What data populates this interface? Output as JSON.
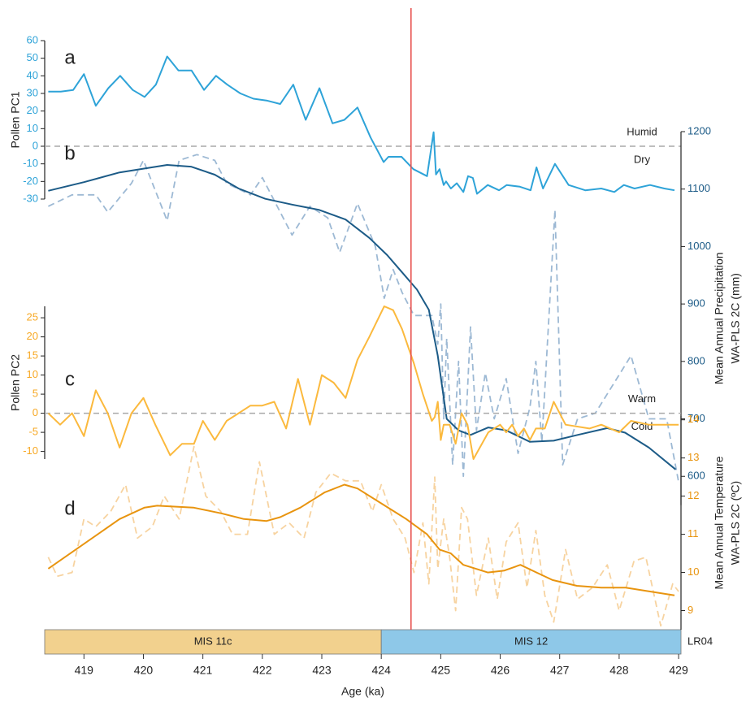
{
  "chart_data": [
    {
      "type": "line",
      "panel_label": "a",
      "ylabel": [
        "Pollen PC1"
      ],
      "axis_side": "left",
      "axis_color": "#2ea3d8",
      "xlim": [
        418.34,
        429.04
      ],
      "ylim": [
        -30,
        60
      ],
      "yticks": [
        -30,
        -20,
        -10,
        0,
        10,
        20,
        30,
        40,
        50,
        60
      ],
      "reference_line": {
        "value": 0,
        "labels": [
          "Humid",
          "Dry"
        ]
      },
      "series": [
        {
          "color": "#2ea3d8",
          "dashed": false,
          "x": [
            418.4,
            418.61,
            418.82,
            419.0,
            419.2,
            419.41,
            419.61,
            419.82,
            420.02,
            420.21,
            420.4,
            420.59,
            420.81,
            421.02,
            421.22,
            421.41,
            421.63,
            421.85,
            422.07,
            422.3,
            422.52,
            422.73,
            422.96,
            423.18,
            423.38,
            423.6,
            423.82,
            424.04,
            424.12,
            424.34,
            424.54,
            424.77,
            424.88,
            424.92,
            424.98,
            425.05,
            425.09,
            425.17,
            425.27,
            425.38,
            425.46,
            425.54,
            425.61,
            425.79,
            425.98,
            426.11,
            426.33,
            426.51,
            426.61,
            426.72,
            426.92,
            427.15,
            427.43,
            427.7,
            427.92,
            428.08,
            428.26,
            428.52,
            428.76,
            428.93
          ],
          "values": [
            31,
            31,
            32,
            41,
            23,
            33,
            40,
            32,
            28,
            35,
            51,
            43,
            43,
            32,
            40,
            35,
            30,
            27,
            26,
            24,
            35,
            15,
            33,
            13,
            15,
            22,
            5,
            -9,
            -6,
            -6,
            -13,
            -17,
            8,
            -16,
            -13,
            -22,
            -20,
            -24,
            -21,
            -26,
            -17,
            -18,
            -27,
            -22,
            -25,
            -22,
            -23,
            -25,
            -12,
            -24,
            -10,
            -22,
            -25,
            -24,
            -26,
            -22,
            -24,
            -22,
            -24,
            -25
          ]
        }
      ]
    },
    {
      "type": "line",
      "panel_label": "b",
      "ylabel": [
        "Mean Annual Precipitation",
        "WA-PLS 2C (mm)"
      ],
      "axis_side": "right",
      "axis_color": "#1c5b87",
      "xlim": [
        418.34,
        429.04
      ],
      "ylim": [
        550,
        1200
      ],
      "yticks": [
        600,
        700,
        800,
        900,
        1000,
        1100,
        1200
      ],
      "series": [
        {
          "color": "#9db9d4",
          "dashed": true,
          "x": [
            418.4,
            418.8,
            419.2,
            419.4,
            419.8,
            420.0,
            420.4,
            420.6,
            420.9,
            421.2,
            421.4,
            421.8,
            422.0,
            422.3,
            422.5,
            422.8,
            423.1,
            423.3,
            423.6,
            423.9,
            424.05,
            424.2,
            424.35,
            424.55,
            424.85,
            424.95,
            425.0,
            425.05,
            425.1,
            425.2,
            425.3,
            425.38,
            425.5,
            425.6,
            425.75,
            425.9,
            426.1,
            426.3,
            426.5,
            426.6,
            426.7,
            426.92,
            427.05,
            427.3,
            427.6,
            427.9,
            428.2,
            428.5,
            428.8,
            429.0
          ],
          "values": [
            1070,
            1090,
            1090,
            1060,
            1110,
            1150,
            1045,
            1150,
            1160,
            1150,
            1110,
            1090,
            1120,
            1060,
            1020,
            1070,
            1050,
            990,
            1075,
            1000,
            910,
            960,
            920,
            880,
            880,
            830,
            900,
            700,
            840,
            620,
            800,
            600,
            860,
            680,
            780,
            700,
            770,
            640,
            720,
            800,
            660,
            1064,
            620,
            700,
            710,
            760,
            810,
            700,
            700,
            590
          ]
        },
        {
          "color": "#1c5b87",
          "dashed": false,
          "x": [
            418.4,
            419.0,
            419.6,
            420.4,
            420.8,
            421.2,
            421.6,
            422.05,
            422.5,
            422.95,
            423.4,
            423.8,
            424.1,
            424.35,
            424.6,
            424.8,
            424.95,
            425.1,
            425.3,
            425.5,
            425.8,
            426.1,
            426.5,
            426.9,
            427.3,
            427.8,
            428.1,
            428.5,
            428.95
          ],
          "values": [
            1097,
            1112,
            1129,
            1142,
            1139,
            1125,
            1101,
            1083,
            1073,
            1064,
            1047,
            1015,
            985,
            955,
            925,
            890,
            810,
            700,
            680,
            672,
            685,
            680,
            660,
            662,
            672,
            684,
            676,
            650,
            612
          ]
        }
      ]
    },
    {
      "type": "line",
      "panel_label": "c",
      "ylabel": [
        "Pollen PC2"
      ],
      "axis_side": "left",
      "axis_color": "#f7a823",
      "xlim": [
        418.34,
        429.04
      ],
      "ylim": [
        -12,
        28
      ],
      "yticks": [
        -10,
        -5,
        0,
        5,
        10,
        15,
        20,
        25
      ],
      "reference_line": {
        "value": 0,
        "labels": [
          "Warm",
          "Cold"
        ]
      },
      "series": [
        {
          "color": "#fbb93d",
          "dashed": false,
          "x": [
            418.4,
            418.6,
            418.8,
            419.0,
            419.2,
            419.4,
            419.6,
            419.8,
            420.0,
            420.2,
            420.45,
            420.65,
            420.85,
            421.0,
            421.2,
            421.4,
            421.6,
            421.8,
            422.0,
            422.2,
            422.4,
            422.6,
            422.8,
            423.0,
            423.2,
            423.4,
            423.6,
            423.8,
            424.05,
            424.2,
            424.35,
            424.55,
            424.7,
            424.85,
            424.9,
            424.95,
            425.0,
            425.05,
            425.15,
            425.25,
            425.35,
            425.45,
            425.55,
            425.8,
            426.0,
            426.1,
            426.2,
            426.3,
            426.4,
            426.5,
            426.6,
            426.75,
            426.9,
            427.1,
            427.5,
            427.7,
            428.0,
            428.2,
            428.5,
            429.0
          ],
          "values": [
            0,
            -3,
            0,
            -6,
            6,
            0,
            -9,
            0,
            4,
            -3,
            -11,
            -8,
            -8,
            -2,
            -7,
            -2,
            0,
            2,
            2,
            3,
            -4,
            9,
            -3,
            10,
            8,
            4,
            14,
            20,
            28,
            27,
            22,
            13,
            5,
            -2,
            -1,
            3,
            -7,
            -3,
            -3,
            -8,
            0,
            -3,
            -12,
            -5,
            -3,
            -5,
            -3,
            -6,
            -4,
            -7,
            -4,
            -4,
            3,
            -3,
            -4,
            -3,
            -5,
            -2,
            -3,
            -3
          ]
        }
      ]
    },
    {
      "type": "line",
      "panel_label": "d",
      "ylabel": [
        "Mean Annual Temperature",
        "WA-PLS 2C (ºC)"
      ],
      "axis_side": "right",
      "axis_color": "#e8940f",
      "xlim": [
        418.34,
        429.04
      ],
      "ylim": [
        8.5,
        14.1
      ],
      "yticks": [
        9,
        10,
        11,
        12,
        13,
        14
      ],
      "xlabel": "Age (ka)",
      "xticks": [
        419,
        420,
        421,
        422,
        423,
        424,
        425,
        426,
        427,
        428,
        429
      ],
      "stages": [
        {
          "label": "MIS 11c",
          "start": 418.34,
          "end": 424,
          "color": "#f2d18e"
        },
        {
          "label": "MIS 12",
          "start": 424,
          "end": 429.04,
          "color": "#8ec8e8"
        }
      ],
      "stage_source": "LR04",
      "marker": {
        "x": 424.5,
        "color": "#e8524f"
      },
      "series": [
        {
          "color": "#f7d3a0",
          "dashed": true,
          "x": [
            418.4,
            418.55,
            418.8,
            419.0,
            419.2,
            419.45,
            419.7,
            419.9,
            420.15,
            420.35,
            420.6,
            420.85,
            421.05,
            421.3,
            421.5,
            421.75,
            421.95,
            422.2,
            422.45,
            422.7,
            422.9,
            423.15,
            423.4,
            423.65,
            423.85,
            424.0,
            424.2,
            424.4,
            424.55,
            424.7,
            424.8,
            424.9,
            424.95,
            425.05,
            425.15,
            425.25,
            425.35,
            425.45,
            425.6,
            425.8,
            425.95,
            426.1,
            426.3,
            426.45,
            426.6,
            426.75,
            426.9,
            427.1,
            427.3,
            427.55,
            427.8,
            428.0,
            428.25,
            428.45,
            428.7,
            428.9,
            429.0
          ],
          "values": [
            10.4,
            9.9,
            10.0,
            11.4,
            11.2,
            11.6,
            12.3,
            10.9,
            11.2,
            12.0,
            11.4,
            13.3,
            12.0,
            11.6,
            11.0,
            11.0,
            12.9,
            11.0,
            11.3,
            10.9,
            12.1,
            12.6,
            12.4,
            12.4,
            11.6,
            12.3,
            11.4,
            10.9,
            10.0,
            11.3,
            9.7,
            12.5,
            10.1,
            11.4,
            10.4,
            9.0,
            11.7,
            11.4,
            9.4,
            10.9,
            9.3,
            10.8,
            11.3,
            9.6,
            11.1,
            9.4,
            8.7,
            10.6,
            9.3,
            9.6,
            10.2,
            9.0,
            10.3,
            10.4,
            8.6,
            9.7,
            9.5
          ]
        },
        {
          "color": "#e8940f",
          "dashed": false,
          "x": [
            418.4,
            419.6,
            420.02,
            420.23,
            420.84,
            421.31,
            421.69,
            422.07,
            422.3,
            422.64,
            423.05,
            423.38,
            423.6,
            424.01,
            424.42,
            424.77,
            424.98,
            425.17,
            425.38,
            425.79,
            426.07,
            426.34,
            426.61,
            426.88,
            427.29,
            427.7,
            428.11,
            428.52,
            428.93
          ],
          "values": [
            10.1,
            11.4,
            11.7,
            11.75,
            11.7,
            11.55,
            11.4,
            11.35,
            11.45,
            11.7,
            12.1,
            12.3,
            12.2,
            11.8,
            11.4,
            11.0,
            10.6,
            10.5,
            10.2,
            10.0,
            10.05,
            10.2,
            10.0,
            9.8,
            9.65,
            9.6,
            9.6,
            9.5,
            9.4
          ]
        }
      ]
    }
  ]
}
